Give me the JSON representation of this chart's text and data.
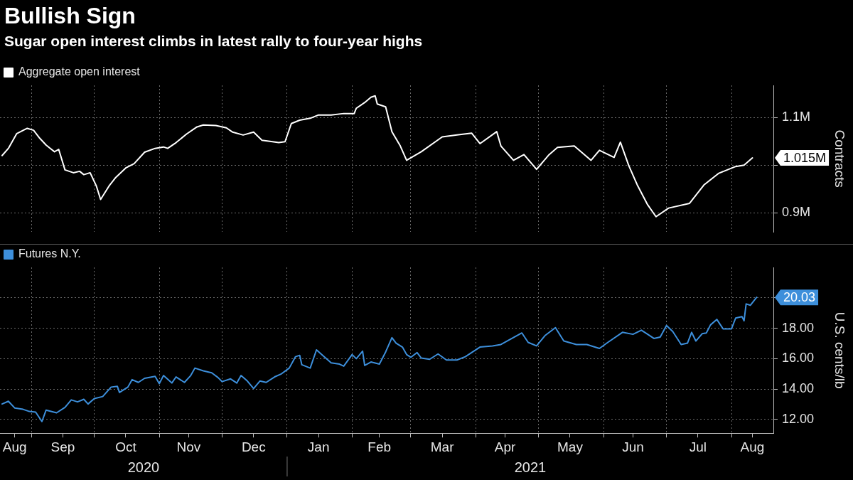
{
  "chart_data": [
    {
      "type": "line",
      "title": "Bullish Sign",
      "subtitle": "Sugar open interest climbs in latest rally to four-year highs",
      "ylabel": "Contracts",
      "legend": "top left",
      "grid": true,
      "tick_labels": "y",
      "x": [
        "2020-08-18",
        "2020-08-21",
        "2020-08-25",
        "2020-08-30",
        "2020-09-02",
        "2020-09-05",
        "2020-09-08",
        "2020-09-10",
        "2020-09-12",
        "2020-09-14",
        "2020-09-17",
        "2020-09-21",
        "2020-09-24",
        "2020-09-26",
        "2020-09-29",
        "2020-10-02",
        "2020-10-04",
        "2020-10-08",
        "2020-10-11",
        "2020-10-16",
        "2020-10-20",
        "2020-10-25",
        "2020-10-30",
        "2020-11-03",
        "2020-11-05",
        "2020-11-09",
        "2020-11-14",
        "2020-11-19",
        "2020-11-22",
        "2020-11-28",
        "2020-12-03",
        "2020-12-06",
        "2020-12-11",
        "2020-12-16",
        "2020-12-20",
        "2020-12-25",
        "2020-12-28",
        "2020-12-31",
        "2021-01-03",
        "2021-01-07",
        "2021-01-12",
        "2021-01-16",
        "2021-01-22",
        "2021-01-28",
        "2021-02-02",
        "2021-02-03",
        "2021-02-07",
        "2021-02-10",
        "2021-02-12",
        "2021-02-13",
        "2021-02-17",
        "2021-02-20",
        "2021-02-24",
        "2021-02-27",
        "2021-03-06",
        "2021-03-16",
        "2021-03-23",
        "2021-03-30",
        "2021-04-03",
        "2021-04-11",
        "2021-04-13",
        "2021-04-19",
        "2021-04-24",
        "2021-04-30",
        "2021-05-06",
        "2021-05-10",
        "2021-05-18",
        "2021-05-26",
        "2021-05-30",
        "2021-06-06",
        "2021-06-09",
        "2021-06-13",
        "2021-06-17",
        "2021-06-22",
        "2021-06-26",
        "2021-07-02",
        "2021-07-12",
        "2021-07-19",
        "2021-07-26",
        "2021-07-30",
        "2021-08-03",
        "2021-08-07",
        "2021-08-11"
      ],
      "series": [
        {
          "name": "Aggregate open interest",
          "color": "#ffffff",
          "values": [
            1020000,
            1035000,
            1066000,
            1077000,
            1073000,
            1056000,
            1042000,
            1035000,
            1028000,
            1033000,
            990000,
            984000,
            987000,
            980000,
            984000,
            956000,
            928000,
            956000,
            973000,
            994000,
            1003000,
            1027000,
            1035000,
            1038000,
            1035000,
            1047000,
            1065000,
            1080000,
            1084000,
            1083000,
            1078000,
            1069000,
            1063000,
            1069000,
            1052000,
            1049000,
            1047000,
            1049000,
            1087000,
            1094000,
            1098000,
            1105000,
            1105000,
            1108000,
            1108000,
            1119000,
            1131000,
            1142000,
            1145000,
            1128000,
            1122000,
            1070000,
            1040000,
            1010000,
            1028000,
            1059000,
            1063000,
            1067000,
            1045000,
            1070000,
            1040000,
            1010000,
            1022000,
            991000,
            1022000,
            1037000,
            1040000,
            1010000,
            1031000,
            1016000,
            1048000,
            999000,
            959000,
            917000,
            892000,
            910000,
            920000,
            959000,
            983000,
            990000,
            997000,
            1000000,
            1015000
          ]
        }
      ],
      "xlim": [
        "2020-08-17",
        "2021-08-21"
      ],
      "xticks": [
        {
          "value": "2020-09-01",
          "label": null
        },
        {
          "value": "2020-10-01",
          "label": null
        },
        {
          "value": "2020-11-01",
          "label": null
        },
        {
          "value": "2020-12-01",
          "label": null
        },
        {
          "value": "2021-01-01",
          "label": null
        },
        {
          "value": "2021-02-01",
          "label": null
        },
        {
          "value": "2021-03-01",
          "label": null
        },
        {
          "value": "2021-04-01",
          "label": null
        },
        {
          "value": "2021-05-01",
          "label": null
        },
        {
          "value": "2021-06-01",
          "label": null
        },
        {
          "value": "2021-07-01",
          "label": null
        },
        {
          "value": "2021-08-01",
          "label": null
        }
      ],
      "ylim": [
        860000,
        1167000
      ],
      "yticks": [
        {
          "value": 900000,
          "label": "0.9M"
        },
        {
          "value": 1000000,
          "label": null
        },
        {
          "value": 1100000,
          "label": "1.1M"
        }
      ],
      "annotations": [
        {
          "text": "1.015M",
          "x": "2021-08-11",
          "y": 1015000
        }
      ]
    },
    {
      "type": "line",
      "ylabel": "U.S. cents/lb",
      "legend": "top left",
      "grid": true,
      "x": [
        "2020-08-18",
        "2020-08-21",
        "2020-08-24",
        "2020-08-28",
        "2020-08-31",
        "2020-09-03",
        "2020-09-06",
        "2020-09-08",
        "2020-09-13",
        "2020-09-17",
        "2020-09-20",
        "2020-09-23",
        "2020-09-26",
        "2020-09-28",
        "2020-10-01",
        "2020-10-05",
        "2020-10-09",
        "2020-10-12",
        "2020-10-13",
        "2020-10-17",
        "2020-10-19",
        "2020-10-22",
        "2020-10-25",
        "2020-10-30",
        "2020-11-01",
        "2020-11-03",
        "2020-11-07",
        "2020-11-09",
        "2020-11-13",
        "2020-11-16",
        "2020-11-18",
        "2020-11-22",
        "2020-11-26",
        "2020-11-29",
        "2020-12-01",
        "2020-12-05",
        "2020-12-08",
        "2020-12-10",
        "2020-12-13",
        "2020-12-16",
        "2020-12-19",
        "2020-12-22",
        "2020-12-26",
        "2020-12-29",
        "2021-01-02",
        "2021-01-05",
        "2021-01-07",
        "2021-01-08",
        "2021-01-12",
        "2021-01-15",
        "2021-01-19",
        "2021-01-22",
        "2021-01-26",
        "2021-01-28",
        "2021-02-01",
        "2021-02-03",
        "2021-02-06",
        "2021-02-07",
        "2021-02-10",
        "2021-02-14",
        "2021-02-17",
        "2021-02-20",
        "2021-02-22",
        "2021-02-25",
        "2021-02-27",
        "2021-03-01",
        "2021-03-04",
        "2021-03-06",
        "2021-03-10",
        "2021-03-14",
        "2021-03-18",
        "2021-03-23",
        "2021-03-27",
        "2021-04-03",
        "2021-04-09",
        "2021-04-13",
        "2021-04-17",
        "2021-04-23",
        "2021-04-26",
        "2021-04-30",
        "2021-05-04",
        "2021-05-09",
        "2021-05-13",
        "2021-05-19",
        "2021-05-24",
        "2021-05-30",
        "2021-06-03",
        "2021-06-10",
        "2021-06-15",
        "2021-06-19",
        "2021-06-21",
        "2021-06-25",
        "2021-06-28",
        "2021-07-01",
        "2021-07-04",
        "2021-07-08",
        "2021-07-11",
        "2021-07-13",
        "2021-07-15",
        "2021-07-18",
        "2021-07-20",
        "2021-07-22",
        "2021-07-25",
        "2021-07-28",
        "2021-08-01",
        "2021-08-03",
        "2021-08-06",
        "2021-08-07",
        "2021-08-08",
        "2021-08-10",
        "2021-08-13"
      ],
      "series": [
        {
          "name": "Futures N.Y.",
          "color": "#3d8fdb",
          "values": [
            13.02,
            13.2,
            12.76,
            12.67,
            12.53,
            12.49,
            11.87,
            12.62,
            12.44,
            12.8,
            13.29,
            13.16,
            13.33,
            13.02,
            13.38,
            13.51,
            14.13,
            14.18,
            13.78,
            14.13,
            14.62,
            14.44,
            14.71,
            14.84,
            14.36,
            14.89,
            14.4,
            14.8,
            14.44,
            14.89,
            15.38,
            15.2,
            15.07,
            14.76,
            14.49,
            14.67,
            14.4,
            14.89,
            14.53,
            14.04,
            14.53,
            14.44,
            14.8,
            14.98,
            15.38,
            16.13,
            16.22,
            15.6,
            15.38,
            16.58,
            16.09,
            15.73,
            15.64,
            15.51,
            16.27,
            16.0,
            16.49,
            15.56,
            15.78,
            15.64,
            16.44,
            17.38,
            17.02,
            16.76,
            16.27,
            16.09,
            16.4,
            16.04,
            15.96,
            16.31,
            15.91,
            15.91,
            16.13,
            16.76,
            16.84,
            16.93,
            17.24,
            17.69,
            17.07,
            16.84,
            17.51,
            18.04,
            17.16,
            16.93,
            16.93,
            16.67,
            17.07,
            17.73,
            17.6,
            17.87,
            17.69,
            17.33,
            17.42,
            18.18,
            17.78,
            16.93,
            17.02,
            17.73,
            17.16,
            17.64,
            17.69,
            18.22,
            18.58,
            17.96,
            17.96,
            18.67,
            18.76,
            18.49,
            19.6,
            19.51,
            20.03
          ]
        }
      ],
      "xlim": [
        "2020-08-17",
        "2021-08-21"
      ],
      "xticks": [
        {
          "value": "2020-08-24",
          "label": "Aug"
        },
        {
          "value": "2020-09-01",
          "label": null
        },
        {
          "value": "2020-09-16",
          "label": "Sep"
        },
        {
          "value": "2020-10-01",
          "label": null
        },
        {
          "value": "2020-10-16",
          "label": "Oct"
        },
        {
          "value": "2020-11-01",
          "label": null
        },
        {
          "value": "2020-11-15",
          "label": "Nov"
        },
        {
          "value": "2020-12-01",
          "label": null
        },
        {
          "value": "2020-12-16",
          "label": "Dec"
        },
        {
          "value": "2021-01-01",
          "label": null
        },
        {
          "value": "2021-01-16",
          "label": "Jan"
        },
        {
          "value": "2021-02-01",
          "label": null
        },
        {
          "value": "2021-02-14",
          "label": "Feb"
        },
        {
          "value": "2021-03-01",
          "label": null
        },
        {
          "value": "2021-03-16",
          "label": "Mar"
        },
        {
          "value": "2021-04-01",
          "label": null
        },
        {
          "value": "2021-04-15",
          "label": "Apr"
        },
        {
          "value": "2021-05-01",
          "label": null
        },
        {
          "value": "2021-05-16",
          "label": "May"
        },
        {
          "value": "2021-06-01",
          "label": null
        },
        {
          "value": "2021-06-15",
          "label": "Jun"
        },
        {
          "value": "2021-07-01",
          "label": null
        },
        {
          "value": "2021-07-16",
          "label": "Jul"
        },
        {
          "value": "2021-08-01",
          "label": null
        },
        {
          "value": "2021-08-11",
          "label": "Aug"
        }
      ],
      "ylim": [
        11.1,
        22
      ],
      "yticks": [
        {
          "value": 12,
          "label": "12.00"
        },
        {
          "value": 14,
          "label": "14.00"
        },
        {
          "value": 16,
          "label": "16.00"
        },
        {
          "value": 18,
          "label": "18.00"
        },
        {
          "value": 20,
          "label": null
        }
      ],
      "annotations": [
        {
          "text": "20.03",
          "x": "2021-08-13",
          "y": 20.03
        },
        "2020",
        "2021"
      ]
    }
  ]
}
